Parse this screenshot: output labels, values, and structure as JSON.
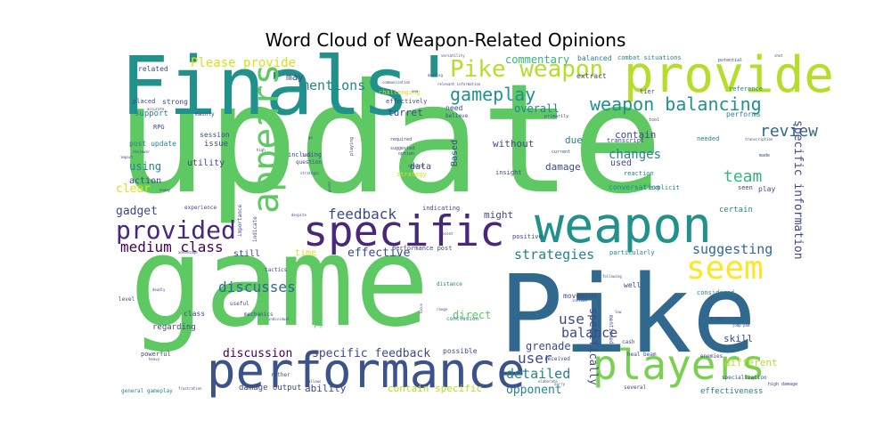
{
  "chart_data": {
    "type": "wordcloud",
    "title": "Word Cloud of Weapon-Related Opinions",
    "words": [
      {
        "text": "update",
        "weight": 100,
        "color": "#5ec962"
      },
      {
        "text": "game",
        "weight": 95,
        "color": "#5ec962"
      },
      {
        "text": "Pike",
        "weight": 85,
        "color": "#31688e"
      },
      {
        "text": "Finals'",
        "weight": 65,
        "color": "#21918c"
      },
      {
        "text": "weapon",
        "weight": 60,
        "color": "#21918c"
      },
      {
        "text": "appears",
        "weight": 45,
        "color": "#5ec962"
      },
      {
        "text": "provide",
        "weight": 42,
        "color": "#b5de2b"
      },
      {
        "text": "performance",
        "weight": 40,
        "color": "#3b528b"
      },
      {
        "text": "specific",
        "weight": 38,
        "color": "#482878"
      },
      {
        "text": "players",
        "weight": 38,
        "color": "#7ad151"
      },
      {
        "text": "seem",
        "weight": 30,
        "color": "#fde725"
      },
      {
        "text": "Pike weapon",
        "weight": 26,
        "color": "#b5de2b"
      },
      {
        "text": "provided",
        "weight": 23,
        "color": "#482878"
      },
      {
        "text": "weapon balancing",
        "weight": 19,
        "color": "#21918c"
      },
      {
        "text": "gameplay",
        "weight": 18,
        "color": "#21918c"
      },
      {
        "text": "review",
        "weight": 17,
        "color": "#31688e"
      },
      {
        "text": "team",
        "weight": 17,
        "color": "#35b779"
      },
      {
        "text": "feedback",
        "weight": 16,
        "color": "#3e4989"
      },
      {
        "text": "medium class",
        "weight": 16,
        "color": "#440154"
      },
      {
        "text": "discusses",
        "weight": 16,
        "color": "#31688e"
      },
      {
        "text": "suggesting",
        "weight": 14,
        "color": "#31688e"
      },
      {
        "text": "balance",
        "weight": 14,
        "color": "#3e4989"
      },
      {
        "text": "strategies",
        "weight": 14,
        "color": "#26828e"
      },
      {
        "text": "use",
        "weight": 15,
        "color": "#3e4989"
      },
      {
        "text": "user",
        "weight": 15,
        "color": "#3e4989"
      },
      {
        "text": "detailed",
        "weight": 14,
        "color": "#26828e"
      },
      {
        "text": "mentions",
        "weight": 13,
        "color": "#26828e"
      },
      {
        "text": "Please provide",
        "weight": 12,
        "color": "#d8e219"
      },
      {
        "text": "changes",
        "weight": 13,
        "color": "#26828e"
      },
      {
        "text": "specific information",
        "weight": 12,
        "color": "#3e4989"
      },
      {
        "text": "specific feedback",
        "weight": 12,
        "color": "#3e4989"
      },
      {
        "text": "discussion",
        "weight": 12,
        "color": "#440154"
      },
      {
        "text": "effective",
        "weight": 12,
        "color": "#3e4989"
      },
      {
        "text": "opponent",
        "weight": 12,
        "color": "#26828e"
      },
      {
        "text": "comment",
        "weight": 12,
        "color": "#5ec962"
      },
      {
        "text": "using",
        "weight": 11,
        "color": "#26828e"
      },
      {
        "text": "gadget",
        "weight": 12,
        "color": "#3e4989"
      },
      {
        "text": "clear",
        "weight": 12,
        "color": "#d8e219"
      },
      {
        "text": "commentary",
        "weight": 11,
        "color": "#35b779"
      },
      {
        "text": "overall",
        "weight": 11,
        "color": "#26828e"
      },
      {
        "text": "contain",
        "weight": 10,
        "color": "#3e4989"
      },
      {
        "text": "damage",
        "weight": 10,
        "color": "#3e4989"
      },
      {
        "text": "direct",
        "weight": 11,
        "color": "#5ec962"
      },
      {
        "text": "specifically",
        "weight": 11,
        "color": "#3e4989"
      },
      {
        "text": "grenade",
        "weight": 11,
        "color": "#3e4989"
      },
      {
        "text": "ability",
        "weight": 10,
        "color": "#3e4989"
      },
      {
        "text": "contain specific",
        "weight": 10,
        "color": "#b5de2b"
      },
      {
        "text": "skill",
        "weight": 10,
        "color": "#3e4989"
      },
      {
        "text": "different",
        "weight": 10,
        "color": "#b5de2b"
      },
      {
        "text": "data",
        "weight": 9,
        "color": "#3e4989"
      },
      {
        "text": "might",
        "weight": 10,
        "color": "#3e4989"
      },
      {
        "text": "without",
        "weight": 10,
        "color": "#3e4989"
      },
      {
        "text": "due",
        "weight": 10,
        "color": "#26828e"
      },
      {
        "text": "may",
        "weight": 10,
        "color": "#3e4989"
      },
      {
        "text": "turret",
        "weight": 10,
        "color": "#3e4989"
      },
      {
        "text": "action",
        "weight": 9,
        "color": "#3e4989"
      },
      {
        "text": "utility",
        "weight": 9,
        "color": "#3e4989"
      },
      {
        "text": "damage output",
        "weight": 8,
        "color": "#3e4989"
      },
      {
        "text": "Based",
        "weight": 9,
        "color": "#3e4989"
      },
      {
        "text": "time",
        "weight": 9,
        "color": "#d8e219"
      },
      {
        "text": "used",
        "weight": 9,
        "color": "#3e4989"
      },
      {
        "text": "certain",
        "weight": 8,
        "color": "#26828e"
      },
      {
        "text": "effectiveness",
        "weight": 8,
        "color": "#26828e"
      },
      {
        "text": "conversation",
        "weight": 7,
        "color": "#26828e"
      },
      {
        "text": "possible",
        "weight": 7,
        "color": "#3e4989"
      },
      {
        "text": "performance post",
        "weight": 6,
        "color": "#3e4989"
      },
      {
        "text": "movement",
        "weight": 7,
        "color": "#3e4989"
      },
      {
        "text": "still",
        "weight": 9,
        "color": "#3e4989"
      },
      {
        "text": "regarding",
        "weight": 8,
        "color": "#3e4989"
      },
      {
        "text": "class",
        "weight": 7,
        "color": "#3e4989"
      },
      {
        "text": "issue",
        "weight": 8,
        "color": "#3e4989"
      },
      {
        "text": "session",
        "weight": 7,
        "color": "#3e4989"
      },
      {
        "text": "support",
        "weight": 8,
        "color": "#26828e"
      },
      {
        "text": "post update",
        "weight": 7,
        "color": "#26828e"
      },
      {
        "text": "strong",
        "weight": 7,
        "color": "#3e4989"
      },
      {
        "text": "RPG",
        "weight": 6,
        "color": "#3e4989"
      },
      {
        "text": "placed",
        "weight": 6,
        "color": "#3e4989"
      },
      {
        "text": "related",
        "weight": 7,
        "color": "#3e4989"
      },
      {
        "text": "extract",
        "weight": 7,
        "color": "#3e4989"
      },
      {
        "text": "balanced",
        "weight": 7,
        "color": "#26828e"
      },
      {
        "text": "combat situations",
        "weight": 6,
        "color": "#26828e"
      },
      {
        "text": "tier",
        "weight": 6,
        "color": "#3e4989"
      },
      {
        "text": "reference",
        "weight": 6,
        "color": "#26828e"
      },
      {
        "text": "performs",
        "weight": 7,
        "color": "#26828e"
      },
      {
        "text": "needed",
        "weight": 6,
        "color": "#26828e"
      },
      {
        "text": "transcript",
        "weight": 6,
        "color": "#3e4989"
      },
      {
        "text": "reaction",
        "weight": 6,
        "color": "#26828e"
      },
      {
        "text": "explicit",
        "weight": 6,
        "color": "#26828e"
      },
      {
        "text": "play",
        "weight": 7,
        "color": "#3e4989"
      },
      {
        "text": "seen",
        "weight": 6,
        "color": "#3e4989"
      },
      {
        "text": "considered",
        "weight": 6,
        "color": "#26828e"
      },
      {
        "text": "well",
        "weight": 7,
        "color": "#3e4989"
      },
      {
        "text": "particularly",
        "weight": 6,
        "color": "#26828e"
      },
      {
        "text": "positive",
        "weight": 6,
        "color": "#3e4989"
      },
      {
        "text": "indicating",
        "weight": 6,
        "color": "#3e4989"
      },
      {
        "text": "challenging",
        "weight": 6,
        "color": "#d8e219"
      },
      {
        "text": "effectively",
        "weight": 6,
        "color": "#3e4989"
      },
      {
        "text": "need",
        "weight": 7,
        "color": "#3e4989"
      },
      {
        "text": "believe",
        "weight": 5,
        "color": "#3e4989"
      },
      {
        "text": "insight",
        "weight": 6,
        "color": "#3e4989"
      },
      {
        "text": "strategy",
        "weight": 6,
        "color": "#d8e219"
      },
      {
        "text": "including",
        "weight": 6,
        "color": "#3e4989"
      },
      {
        "text": "question",
        "weight": 5,
        "color": "#3e4989"
      },
      {
        "text": "mainly",
        "weight": 5,
        "color": "#3e4989"
      },
      {
        "text": "experience",
        "weight": 5,
        "color": "#3e4989"
      },
      {
        "text": "tactics",
        "weight": 5,
        "color": "#3e4989"
      },
      {
        "text": "powerful",
        "weight": 6,
        "color": "#3e4989"
      },
      {
        "text": "general gameplay",
        "weight": 5,
        "color": "#26828e"
      },
      {
        "text": "heal beam",
        "weight": 5,
        "color": "#3e4989"
      },
      {
        "text": "several",
        "weight": 5,
        "color": "#3e4989"
      },
      {
        "text": "high damage",
        "weight": 4,
        "color": "#3e4989"
      },
      {
        "text": "specialization",
        "weight": 5,
        "color": "#3e4989"
      },
      {
        "text": "enemies",
        "weight": 5,
        "color": "#3e4989"
      },
      {
        "text": "level",
        "weight": 5,
        "color": "#3e4989"
      },
      {
        "text": "importance",
        "weight": 5,
        "color": "#3e4989"
      },
      {
        "text": "indicate",
        "weight": 5,
        "color": "#3e4989"
      },
      {
        "text": "useful",
        "weight": 5,
        "color": "#3e4989"
      },
      {
        "text": "mechanics",
        "weight": 5,
        "color": "#3e4989"
      },
      {
        "text": "rather",
        "weight": 5,
        "color": "#3e4989"
      },
      {
        "text": "distance",
        "weight": 5,
        "color": "#26828e"
      },
      {
        "text": "conclusion",
        "weight": 5,
        "color": "#26828e"
      },
      {
        "text": "mentioned",
        "weight": 5,
        "color": "#3e4989"
      },
      {
        "text": "cash",
        "weight": 5,
        "color": "#3e4989"
      },
      {
        "text": "received",
        "weight": 5,
        "color": "#3e4989"
      },
      {
        "text": "required",
        "weight": 5,
        "color": "#3e4989"
      },
      {
        "text": "suggested",
        "weight": 5,
        "color": "#3e4989"
      },
      {
        "text": "option",
        "weight": 4,
        "color": "#3e4989"
      },
      {
        "text": "choice",
        "weight": 4,
        "color": "#3e4989"
      },
      {
        "text": "playing",
        "weight": 4,
        "color": "#3e4989"
      },
      {
        "text": "current",
        "weight": 4,
        "color": "#3e4989"
      },
      {
        "text": "primarily",
        "weight": 4,
        "color": "#3e4989"
      },
      {
        "text": "tool",
        "weight": 4,
        "color": "#3e4989"
      },
      {
        "text": "made",
        "weight": 4,
        "color": "#3e4989"
      },
      {
        "text": "potential",
        "weight": 4,
        "color": "#3e4989"
      },
      {
        "text": "versatility",
        "weight": 4,
        "color": "#3e4989"
      },
      {
        "text": "dealing",
        "weight": 4,
        "color": "#3e4989"
      },
      {
        "text": "relevant information",
        "weight": 4,
        "color": "#3e4989"
      },
      {
        "text": "communication",
        "weight": 4,
        "color": "#3e4989"
      },
      {
        "text": "accurate",
        "weight": 4,
        "color": "#3e4989"
      },
      {
        "text": "reviewer",
        "weight": 4,
        "color": "#3e4989"
      },
      {
        "text": "impact",
        "weight": 4,
        "color": "#3e4989"
      },
      {
        "text": "enemy",
        "weight": 4,
        "color": "#3e4989"
      },
      {
        "text": "despite",
        "weight": 4,
        "color": "#3e4989"
      },
      {
        "text": "advantage",
        "weight": 4,
        "color": "#3e4989"
      },
      {
        "text": "individual",
        "weight": 4,
        "color": "#3e4989"
      },
      {
        "text": "allows",
        "weight": 4,
        "color": "#3e4989"
      },
      {
        "text": "deadly",
        "weight": 4,
        "color": "#3e4989"
      },
      {
        "text": "heavy",
        "weight": 4,
        "color": "#3e4989"
      },
      {
        "text": "frustration",
        "weight": 4,
        "color": "#3e4989"
      },
      {
        "text": "elaborate",
        "weight": 4,
        "color": "#3e4989"
      },
      {
        "text": "sorry",
        "weight": 4,
        "color": "#3e4989"
      },
      {
        "text": "B tier",
        "weight": 4,
        "color": "#3e4989"
      },
      {
        "text": "jump pad",
        "weight": 4,
        "color": "#3e4989"
      },
      {
        "text": "include",
        "weight": 4,
        "color": "#3e4989"
      },
      {
        "text": "following",
        "weight": 4,
        "color": "#3e4989"
      },
      {
        "text": "range",
        "weight": 4,
        "color": "#3e4989"
      },
      {
        "text": "focus",
        "weight": 4,
        "color": "#3e4989"
      },
      {
        "text": "recent",
        "weight": 4,
        "color": "#3e4989"
      },
      {
        "text": "given",
        "weight": 4,
        "color": "#3e4989"
      },
      {
        "text": "strategic",
        "weight": 4,
        "color": "#3e4989"
      },
      {
        "text": "lack",
        "weight": 4,
        "color": "#3e4989"
      },
      {
        "text": "go",
        "weight": 4,
        "color": "#3e4989"
      },
      {
        "text": "high",
        "weight": 4,
        "color": "#3e4989"
      },
      {
        "text": "shot",
        "weight": 4,
        "color": "#3e4989"
      },
      {
        "text": "transcription",
        "weight": 4,
        "color": "#3e4989"
      },
      {
        "text": "one",
        "weight": 4,
        "color": "#3e4989"
      },
      {
        "text": "low",
        "weight": 4,
        "color": "#3e4989"
      }
    ]
  }
}
